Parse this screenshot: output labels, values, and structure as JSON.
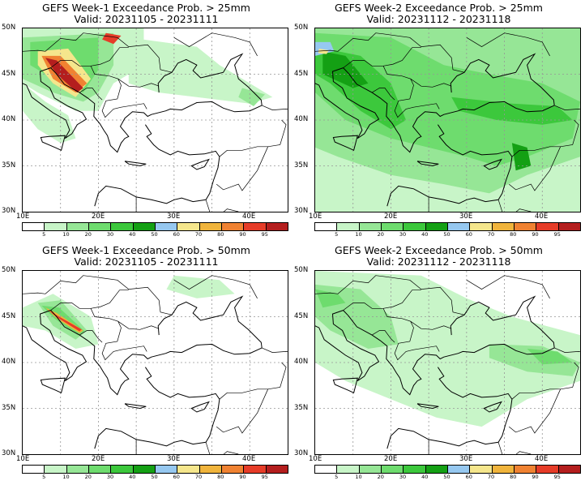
{
  "panels": [
    {
      "title": "GEFS Week-1 Exceedance Prob. > 25mm",
      "valid": "Valid: 20231105 - 20231111"
    },
    {
      "title": "GEFS Week-2 Exceedance Prob. > 25mm",
      "valid": "Valid: 20231112 - 20231118"
    },
    {
      "title": "GEFS Week-1 Exceedance Prob. > 50mm",
      "valid": "Valid: 20231105 - 20231111"
    },
    {
      "title": "GEFS Week-2 Exceedance Prob. > 50mm",
      "valid": "Valid: 20231112 - 20231118"
    }
  ],
  "lat_labels": [
    "50N",
    "45N",
    "40N",
    "35N",
    "30N"
  ],
  "lon_labels": [
    "10E",
    "20E",
    "30E",
    "40E"
  ],
  "colorbar": {
    "labels": [
      "5",
      "10",
      "20",
      "30",
      "40",
      "50",
      "60",
      "70",
      "80",
      "90",
      "95"
    ],
    "colors": [
      "#ffffff",
      "#c8f5c8",
      "#96e696",
      "#6edc6e",
      "#3cc83c",
      "#14a014",
      "#96c8f0",
      "#f5e68c",
      "#f0b43c",
      "#f08232",
      "#e63c28",
      "#b41e1e"
    ]
  },
  "colors": {
    "land_outline": "#000000",
    "grid": "#969696"
  }
}
